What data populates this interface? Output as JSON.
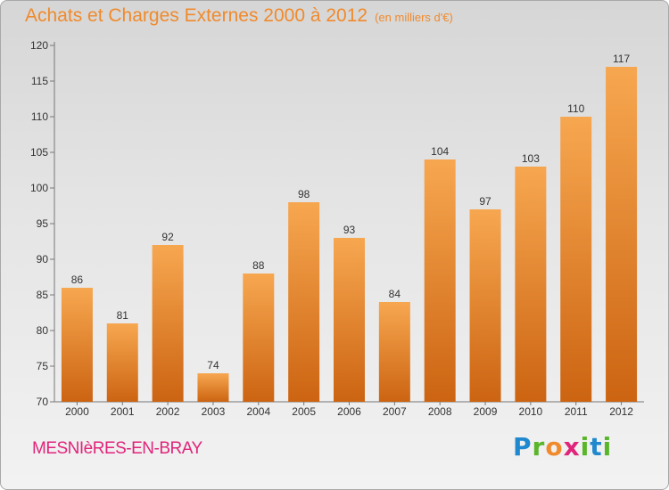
{
  "header": {
    "title": "Achats et Charges Externes 2000 à 2012",
    "unit": "(en milliers d'€)"
  },
  "footer": {
    "commune": "MESNIèRES-EN-BRAY",
    "logo": [
      "P",
      "r",
      "o",
      "x",
      "i",
      "t",
      "i"
    ],
    "logo_colors": [
      "#1f88cf",
      "#59b52a",
      "#f08a2c",
      "#e0247a",
      "#59b52a",
      "#1f88cf",
      "#59b52a"
    ]
  },
  "chart_data": {
    "type": "bar",
    "categories": [
      "2000",
      "2001",
      "2002",
      "2003",
      "2004",
      "2005",
      "2006",
      "2007",
      "2008",
      "2009",
      "2010",
      "2011",
      "2012"
    ],
    "values": [
      86,
      81,
      92,
      74,
      88,
      98,
      93,
      84,
      104,
      97,
      103,
      110,
      117
    ],
    "ylim": [
      70,
      120
    ],
    "yticks": [
      70,
      75,
      80,
      85,
      90,
      95,
      100,
      105,
      110,
      115,
      120
    ],
    "grid": false,
    "bar_color": "#f08a2c"
  }
}
